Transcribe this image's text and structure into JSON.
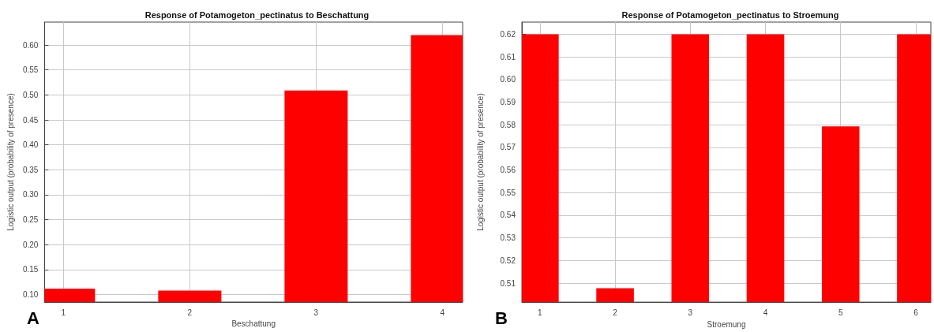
{
  "chart_data": [
    {
      "type": "bar",
      "title": "Response of Potamogeton_pectinatus to Beschattung",
      "xlabel": "Beschattung",
      "ylabel": "Logistic output (probability of presence)",
      "x": [
        1,
        2,
        3,
        4
      ],
      "values": [
        0.112,
        0.108,
        0.509,
        0.62
      ],
      "color": "#ff0000",
      "xlim": [
        0.85,
        4.16
      ],
      "xticks": [
        1,
        2,
        3,
        4
      ],
      "ylim": [
        0.085,
        0.646
      ],
      "yticks": [
        {
          "value": 0.1,
          "label": "0.10"
        },
        0.15,
        {
          "value": 0.2,
          "label": "0.20"
        },
        0.25,
        {
          "value": 0.3,
          "label": "0.30"
        },
        0.35,
        {
          "value": 0.4,
          "label": "0.40"
        },
        0.45,
        {
          "value": 0.5,
          "label": "0.50"
        },
        0.55,
        {
          "value": 0.6,
          "label": "0.60"
        }
      ],
      "grid": true,
      "annotations": [
        "A"
      ]
    },
    {
      "type": "bar",
      "title": "Response of Potamogeton_pectinatus to Stroemung",
      "xlabel": "Stroemung",
      "ylabel": "Logistic output (probability of presence)",
      "x": [
        1,
        2,
        3,
        4,
        5,
        6
      ],
      "values": [
        0.62,
        0.5077,
        0.62,
        0.62,
        0.5793,
        0.62
      ],
      "color": "#ff0000",
      "xlim": [
        0.76,
        6.2
      ],
      "xticks": [
        1,
        2,
        3,
        4,
        5,
        6
      ],
      "ylim": [
        0.5016,
        0.6254
      ],
      "yticks": [
        0.51,
        0.52,
        0.53,
        0.54,
        0.55,
        0.56,
        0.57,
        0.58,
        0.59,
        {
          "value": 0.6,
          "label": "0.60"
        },
        0.61,
        0.62
      ],
      "grid": true,
      "annotations": [
        "B"
      ]
    }
  ]
}
